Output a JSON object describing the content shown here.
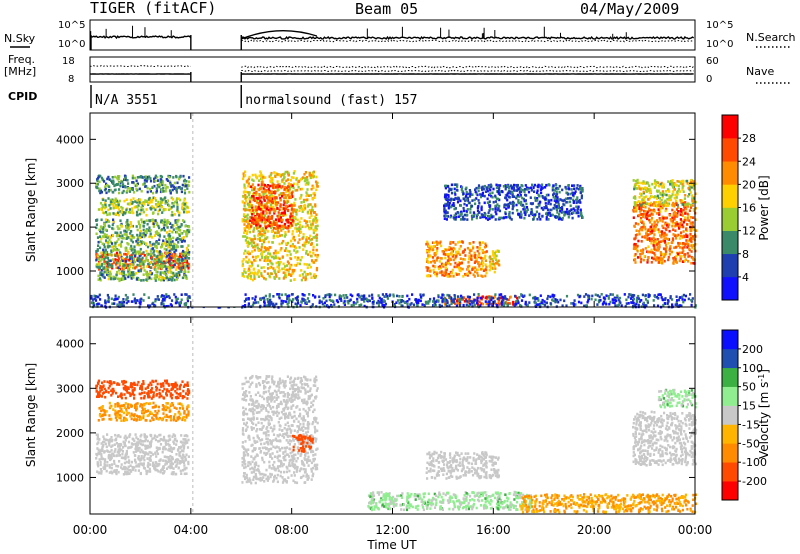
{
  "header": {
    "radar": "TIGER (fitACF)",
    "beam": "Beam 05",
    "date": "04/May/2009"
  },
  "status": {
    "nsky_label": "N.Sky",
    "nsearch_label": "N.Search",
    "noise_ticks_left": [
      "10^5",
      "10^0"
    ],
    "noise_ticks_right": [
      "10^5",
      "10^0"
    ],
    "freq_label": "Freq.",
    "freq_unit": "[MHz]",
    "freq_ticks": [
      "18",
      "8"
    ],
    "nave_label": "Nave",
    "nave_ticks": [
      "60",
      "0"
    ],
    "cpid_label": "CPID",
    "cpid_segments": [
      {
        "start_ut": 0.0,
        "end_ut": 4.0,
        "label": "N/A 3551"
      },
      {
        "start_ut": 6.0,
        "end_ut": 24.0,
        "label": "normalsound (fast) 157"
      }
    ]
  },
  "chart_data": [
    {
      "type": "heatmap",
      "title": "",
      "xlabel": "Time UT",
      "ylabel": "Slant Range [km]",
      "xlim": [
        0,
        24
      ],
      "ylim": [
        180,
        4600
      ],
      "x_ticks": [
        0,
        4,
        8,
        12,
        16,
        20,
        24
      ],
      "x_tick_labels": [
        "00:00",
        "04:00",
        "08:00",
        "12:00",
        "16:00",
        "20:00",
        "00:00"
      ],
      "y_ticks": [
        1000,
        2000,
        3000,
        4000
      ],
      "y_tick_labels": [
        "1000",
        "2000",
        "3000",
        "4000"
      ],
      "colorbar": {
        "label": "Power [dB]",
        "ticks": [
          "28",
          "24",
          "20",
          "16",
          "12",
          "8",
          "4"
        ],
        "colors": [
          "#1010ff",
          "#1f3fb0",
          "#3a8a6a",
          "#9acd32",
          "#ffd000",
          "#ff8c00",
          "#ff4a00",
          "#ff0000"
        ]
      },
      "data_gap_ut": [
        4.0,
        6.0
      ],
      "echo_regions": [
        {
          "t0": 0.2,
          "t1": 3.9,
          "r0": 1050,
          "r1": 1450,
          "value": 26
        },
        {
          "t0": 0.2,
          "t1": 3.9,
          "r0": 800,
          "r1": 2200,
          "value": 12
        },
        {
          "t0": 0.3,
          "t1": 3.9,
          "r0": 2300,
          "r1": 2700,
          "value": 14
        },
        {
          "t0": 0.2,
          "t1": 3.9,
          "r0": 2800,
          "r1": 3200,
          "value": 10
        },
        {
          "t0": 6.0,
          "t1": 9.0,
          "r0": 800,
          "r1": 3300,
          "value": 18
        },
        {
          "t0": 6.3,
          "t1": 8.0,
          "r0": 2000,
          "r1": 3000,
          "value": 26
        },
        {
          "t0": 13.3,
          "t1": 15.7,
          "r0": 900,
          "r1": 1700,
          "value": 22
        },
        {
          "t0": 15.8,
          "t1": 16.2,
          "r0": 1000,
          "r1": 1500,
          "value": 18
        },
        {
          "t0": 14.0,
          "t1": 17.0,
          "r0": 250,
          "r1": 450,
          "value": 26
        },
        {
          "t0": 0.0,
          "t1": 24.0,
          "r0": 200,
          "r1": 500,
          "value": 6
        },
        {
          "t0": 14.0,
          "t1": 19.5,
          "r0": 2200,
          "r1": 3000,
          "value": 6
        },
        {
          "t0": 21.5,
          "t1": 24.0,
          "r0": 1200,
          "r1": 2600,
          "value": 24
        },
        {
          "t0": 21.5,
          "t1": 24.0,
          "r0": 2500,
          "r1": 3100,
          "value": 16
        }
      ]
    },
    {
      "type": "heatmap",
      "title": "",
      "xlabel": "Time UT",
      "ylabel": "Slant Range [km]",
      "xlim": [
        0,
        24
      ],
      "ylim": [
        180,
        4600
      ],
      "x_ticks": [
        0,
        4,
        8,
        12,
        16,
        20,
        24
      ],
      "x_tick_labels": [
        "00:00",
        "04:00",
        "08:00",
        "12:00",
        "16:00",
        "20:00",
        "00:00"
      ],
      "y_ticks": [
        1000,
        2000,
        3000,
        4000
      ],
      "y_tick_labels": [
        "1000",
        "2000",
        "3000",
        "4000"
      ],
      "colorbar": {
        "label": "Velocity [m s^-1]",
        "ticks": [
          "200",
          "100",
          "50",
          "15",
          "-15",
          "-50",
          "-100",
          "-200"
        ],
        "colors": [
          "#ff0000",
          "#ff4a00",
          "#ff8c00",
          "#ffb400",
          "#c8c8c8",
          "#90ee90",
          "#3cb043",
          "#1f4fb0",
          "#0a10ff"
        ]
      },
      "data_gap_ut": [
        4.0,
        6.0
      ],
      "echo_regions": [
        {
          "t0": 0.2,
          "t1": 3.9,
          "r0": 1100,
          "r1": 2000,
          "value": 0
        },
        {
          "t0": 0.2,
          "t1": 3.9,
          "r0": 2800,
          "r1": 3200,
          "value": -150
        },
        {
          "t0": 0.3,
          "t1": 3.9,
          "r0": 2300,
          "r1": 2700,
          "value": -60
        },
        {
          "t0": 6.0,
          "t1": 9.0,
          "r0": 900,
          "r1": 3300,
          "value": 0
        },
        {
          "t0": 8.0,
          "t1": 8.8,
          "r0": 1600,
          "r1": 2000,
          "value": -150
        },
        {
          "t0": 13.3,
          "t1": 15.7,
          "r0": 1000,
          "r1": 1600,
          "value": 0
        },
        {
          "t0": 15.8,
          "t1": 16.2,
          "r0": 1000,
          "r1": 1500,
          "value": 0
        },
        {
          "t0": 11.0,
          "t1": 17.5,
          "r0": 300,
          "r1": 700,
          "value": 25
        },
        {
          "t0": 17.0,
          "t1": 24.0,
          "r0": 250,
          "r1": 650,
          "value": -50
        },
        {
          "t0": 21.5,
          "t1": 24.0,
          "r0": 1300,
          "r1": 2500,
          "value": 0
        },
        {
          "t0": 22.5,
          "t1": 24.0,
          "r0": 2600,
          "r1": 3000,
          "value": 30
        }
      ]
    }
  ]
}
